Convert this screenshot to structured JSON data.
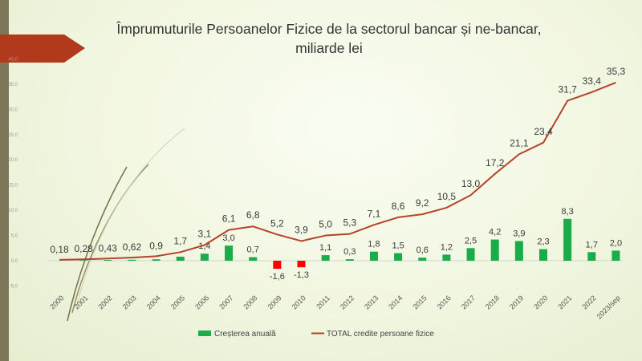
{
  "chart_data": {
    "type": "bar+line",
    "title_line1": "Împrumuturile  Persoanelor Fizice de la sectorul bancar și ne-bancar,",
    "title_line2": "miliarde lei",
    "categories": [
      "2000",
      "2001",
      "2002",
      "2003",
      "2004",
      "2005",
      "2006",
      "2007",
      "2008",
      "2009",
      "2010",
      "2011",
      "2012",
      "2013",
      "2014",
      "2015",
      "2016",
      "2017",
      "2018",
      "2019",
      "2020",
      "2021",
      "2022",
      "2023/sep"
    ],
    "series": [
      {
        "name": "Creșterea anuală",
        "type": "bar",
        "color": "#1aab4b",
        "negative_color": "#ff0000",
        "values": [
          null,
          0.1,
          0.15,
          0.19,
          0.28,
          0.8,
          1.4,
          3.0,
          0.7,
          -1.6,
          -1.3,
          1.1,
          0.3,
          1.8,
          1.5,
          0.6,
          1.2,
          2.5,
          4.2,
          3.9,
          2.3,
          8.3,
          1.7,
          2.0
        ],
        "labels": [
          "",
          "",
          "",
          "",
          "",
          "",
          "1,4",
          "3,0",
          "0,7",
          "-1,6",
          "-1,3",
          "1,1",
          "0,3",
          "1,8",
          "1,5",
          "0,6",
          "1,2",
          "2,5",
          "4,2",
          "3,9",
          "2,3",
          "8,3",
          "1,7",
          "2,0"
        ]
      },
      {
        "name": "TOTAL credite persoane fizice",
        "type": "line",
        "color": "#b5432a",
        "values": [
          0.18,
          0.28,
          0.43,
          0.62,
          0.9,
          1.7,
          3.1,
          6.1,
          6.8,
          5.2,
          3.9,
          5.0,
          5.3,
          7.1,
          8.6,
          9.2,
          10.5,
          13.0,
          17.2,
          21.1,
          23.4,
          31.7,
          33.4,
          35.3
        ],
        "labels": [
          "0,18",
          "0,28",
          "0,43",
          "0,62",
          "0,9",
          "1,7",
          "3,1",
          "6,1",
          "6,8",
          "5,2",
          "3,9",
          "5,0",
          "5,3",
          "7,1",
          "8,6",
          "9,2",
          "10,5",
          "13,0",
          "17,2",
          "21,1",
          "23,4",
          "31,7",
          "33,4",
          "35,3"
        ]
      }
    ],
    "y_ticks": [
      "-5,0",
      "0,0",
      "5,0",
      "10,0",
      "15,0",
      "20,0",
      "25,0",
      "30,0",
      "35,0",
      "40,0"
    ],
    "ylim": [
      -5,
      40
    ],
    "legend_position": "bottom"
  }
}
